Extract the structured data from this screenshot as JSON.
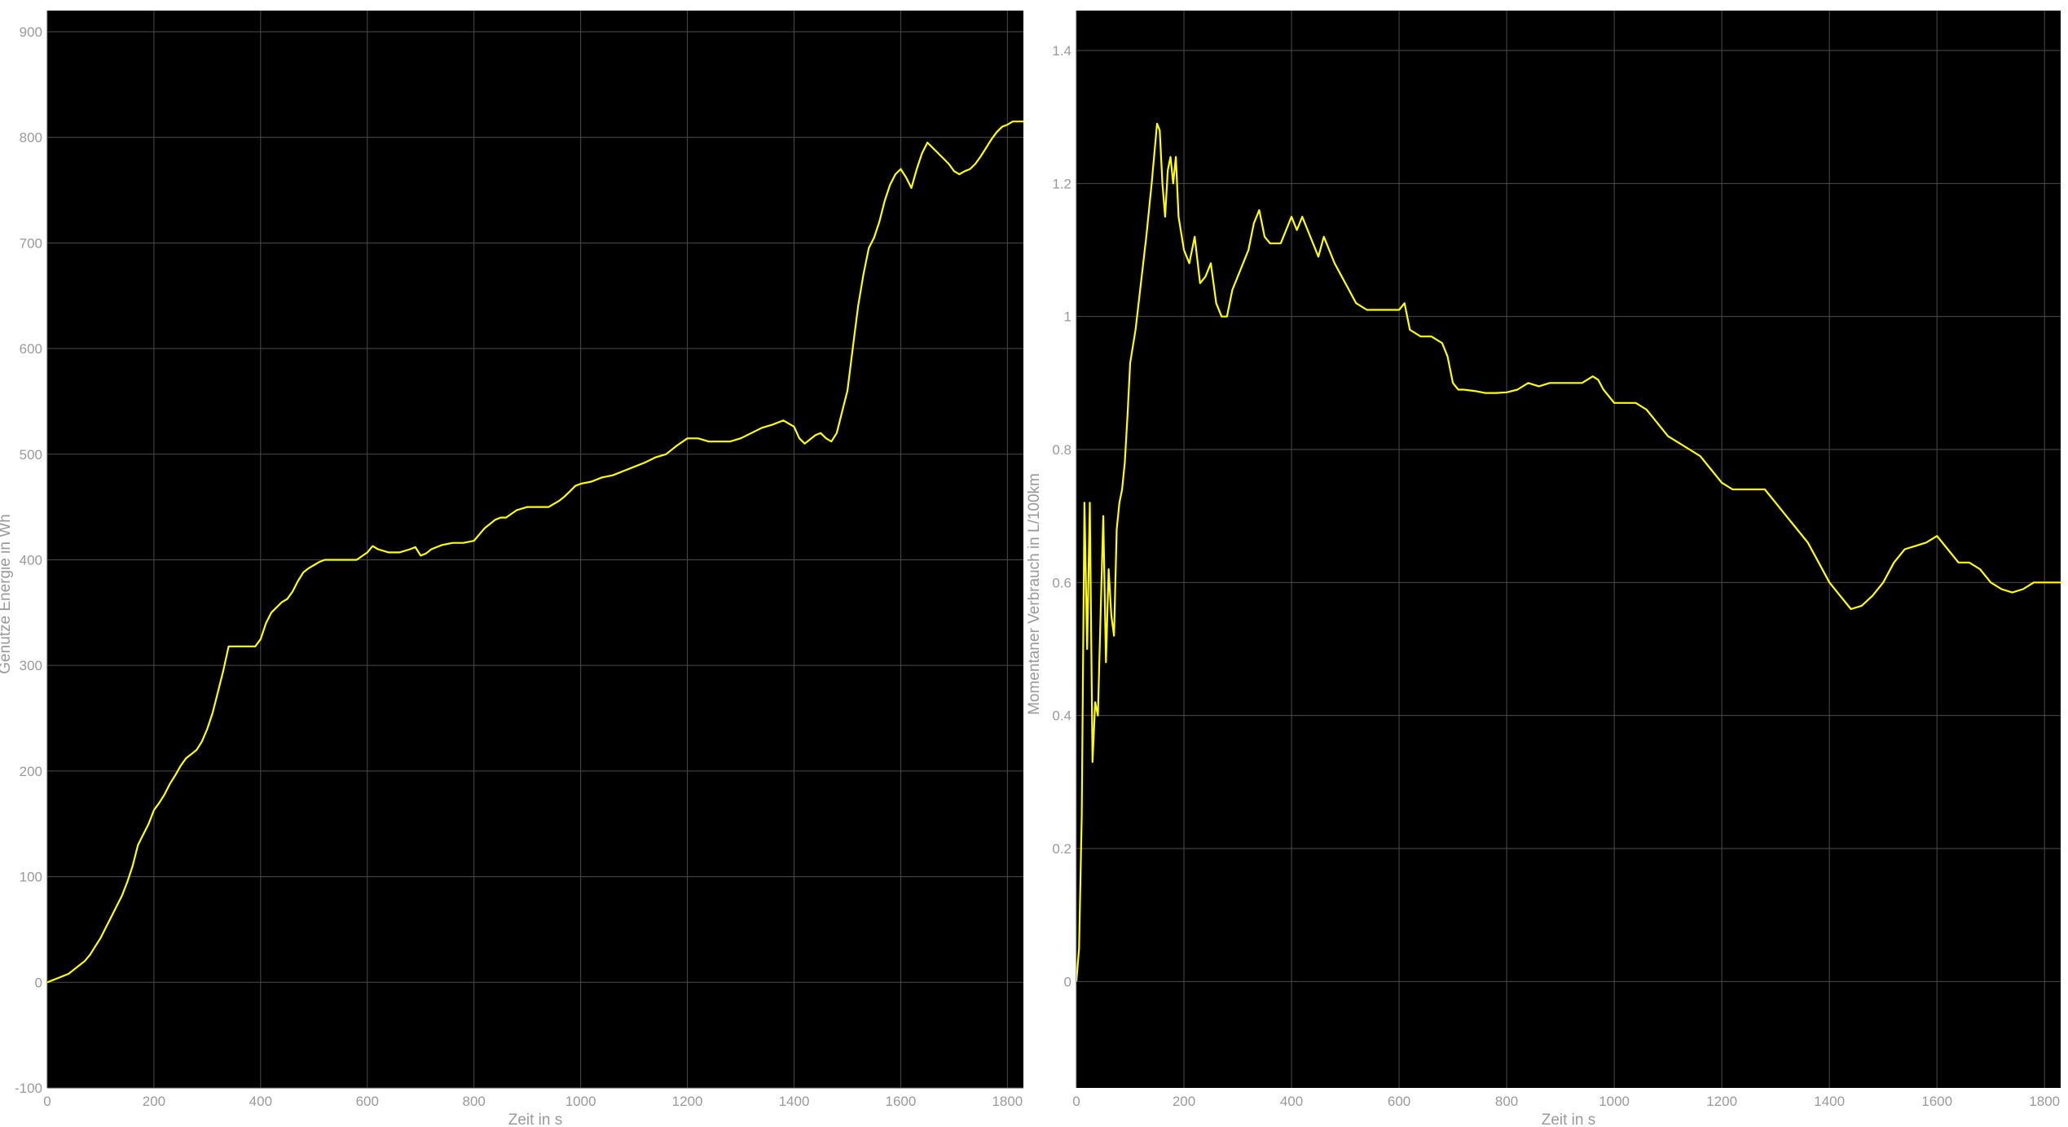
{
  "colors": {
    "background": "#ffffff",
    "plot_area": "#000000",
    "grid": "#4b4b4b",
    "text": "#9a9a9a",
    "line": "#ffff00"
  },
  "chart_data": [
    {
      "type": "line",
      "title": "",
      "xlabel": "Zeit in s",
      "ylabel": "Genutze Energie in Wh",
      "xlim": [
        0,
        1830
      ],
      "ylim": [
        -100,
        920
      ],
      "xticks": [
        0,
        200,
        400,
        600,
        800,
        1000,
        1200,
        1400,
        1600,
        1800
      ],
      "yticks": [
        -100,
        0,
        100,
        200,
        300,
        400,
        500,
        600,
        700,
        800,
        900
      ],
      "grid": true,
      "series": [
        {
          "color": "#ffff00",
          "x": [
            0,
            10,
            20,
            30,
            40,
            50,
            60,
            70,
            80,
            90,
            100,
            110,
            120,
            130,
            140,
            150,
            160,
            170,
            180,
            190,
            200,
            210,
            220,
            230,
            240,
            250,
            260,
            270,
            280,
            290,
            300,
            310,
            320,
            330,
            340,
            350,
            360,
            370,
            380,
            390,
            400,
            410,
            420,
            430,
            440,
            450,
            460,
            470,
            480,
            490,
            500,
            510,
            520,
            530,
            540,
            560,
            580,
            600,
            610,
            620,
            640,
            660,
            680,
            690,
            700,
            710,
            720,
            730,
            740,
            760,
            780,
            800,
            820,
            840,
            850,
            860,
            880,
            900,
            920,
            940,
            960,
            970,
            980,
            990,
            1000,
            1020,
            1040,
            1060,
            1080,
            1100,
            1120,
            1140,
            1160,
            1180,
            1200,
            1220,
            1240,
            1260,
            1280,
            1300,
            1320,
            1340,
            1360,
            1380,
            1400,
            1410,
            1420,
            1430,
            1440,
            1450,
            1460,
            1470,
            1480,
            1490,
            1500,
            1510,
            1520,
            1530,
            1540,
            1550,
            1560,
            1570,
            1580,
            1590,
            1600,
            1610,
            1620,
            1630,
            1640,
            1650,
            1660,
            1670,
            1680,
            1690,
            1700,
            1710,
            1720,
            1730,
            1740,
            1750,
            1760,
            1770,
            1780,
            1790,
            1800,
            1810,
            1820,
            1830
          ],
          "y": [
            0,
            2,
            4,
            6,
            8,
            12,
            16,
            20,
            26,
            34,
            42,
            52,
            62,
            72,
            82,
            95,
            110,
            130,
            140,
            150,
            163,
            170,
            178,
            188,
            196,
            205,
            212,
            216,
            220,
            228,
            240,
            255,
            275,
            295,
            318,
            318,
            318,
            318,
            318,
            318,
            325,
            340,
            350,
            355,
            360,
            363,
            370,
            380,
            388,
            392,
            395,
            398,
            400,
            400,
            400,
            400,
            400,
            407,
            413,
            410,
            407,
            407,
            410,
            412,
            404,
            406,
            410,
            412,
            414,
            416,
            416,
            418,
            430,
            438,
            440,
            440,
            447,
            450,
            450,
            450,
            456,
            460,
            465,
            470,
            472,
            474,
            478,
            480,
            484,
            488,
            492,
            497,
            500,
            508,
            515,
            515,
            512,
            512,
            512,
            515,
            520,
            525,
            528,
            532,
            526,
            515,
            510,
            514,
            518,
            520,
            515,
            512,
            520,
            540,
            560,
            600,
            640,
            670,
            695,
            705,
            720,
            740,
            755,
            765,
            770,
            762,
            752,
            770,
            785,
            795,
            790,
            785,
            780,
            775,
            768,
            765,
            768,
            770,
            775,
            782,
            790,
            798,
            805,
            810,
            812,
            815,
            815,
            815
          ]
        }
      ]
    },
    {
      "type": "line",
      "title": "",
      "xlabel": "Zeit in s",
      "ylabel": "Momentaner Verbrauch in L/100km",
      "xlim": [
        0,
        1830
      ],
      "ylim": [
        -0.16,
        1.46
      ],
      "xticks": [
        0,
        200,
        400,
        600,
        800,
        1000,
        1200,
        1400,
        1600,
        1800
      ],
      "yticks": [
        0,
        0.2,
        0.4,
        0.6,
        0.8,
        1,
        1.2,
        1.4
      ],
      "ytick_labels": [
        "0",
        "0.2",
        "0.4",
        "0.6",
        "0.8",
        "1",
        "1.2",
        "1.4"
      ],
      "grid": true,
      "series": [
        {
          "color": "#ffff00",
          "x": [
            0,
            5,
            10,
            15,
            20,
            25,
            30,
            35,
            40,
            45,
            50,
            55,
            60,
            65,
            70,
            75,
            80,
            85,
            90,
            95,
            100,
            110,
            120,
            130,
            140,
            150,
            155,
            160,
            165,
            170,
            175,
            180,
            185,
            190,
            200,
            210,
            220,
            230,
            240,
            250,
            260,
            270,
            280,
            290,
            300,
            310,
            320,
            330,
            340,
            350,
            360,
            380,
            400,
            410,
            420,
            430,
            440,
            450,
            460,
            470,
            480,
            500,
            520,
            540,
            560,
            580,
            600,
            610,
            620,
            640,
            660,
            680,
            690,
            700,
            710,
            720,
            740,
            760,
            780,
            800,
            820,
            840,
            860,
            880,
            900,
            920,
            940,
            960,
            970,
            980,
            1000,
            1020,
            1040,
            1060,
            1080,
            1100,
            1120,
            1140,
            1160,
            1180,
            1200,
            1220,
            1240,
            1260,
            1280,
            1300,
            1320,
            1340,
            1360,
            1380,
            1400,
            1420,
            1440,
            1460,
            1480,
            1500,
            1520,
            1540,
            1560,
            1580,
            1600,
            1620,
            1640,
            1660,
            1680,
            1700,
            1720,
            1740,
            1760,
            1780,
            1800,
            1820,
            1830
          ],
          "y": [
            0,
            0.05,
            0.25,
            0.72,
            0.5,
            0.72,
            0.33,
            0.42,
            0.4,
            0.55,
            0.7,
            0.48,
            0.62,
            0.55,
            0.52,
            0.68,
            0.72,
            0.74,
            0.78,
            0.85,
            0.93,
            0.98,
            1.05,
            1.12,
            1.2,
            1.29,
            1.28,
            1.2,
            1.15,
            1.22,
            1.24,
            1.2,
            1.24,
            1.15,
            1.1,
            1.08,
            1.12,
            1.05,
            1.06,
            1.08,
            1.02,
            1.0,
            1.0,
            1.04,
            1.06,
            1.08,
            1.1,
            1.14,
            1.16,
            1.12,
            1.11,
            1.11,
            1.15,
            1.13,
            1.15,
            1.13,
            1.11,
            1.09,
            1.12,
            1.1,
            1.08,
            1.05,
            1.02,
            1.01,
            1.01,
            1.01,
            1.01,
            1.02,
            0.98,
            0.97,
            0.97,
            0.96,
            0.94,
            0.9,
            0.89,
            0.89,
            0.888,
            0.885,
            0.885,
            0.886,
            0.89,
            0.9,
            0.895,
            0.9,
            0.9,
            0.9,
            0.9,
            0.91,
            0.905,
            0.89,
            0.87,
            0.87,
            0.87,
            0.86,
            0.84,
            0.82,
            0.81,
            0.8,
            0.79,
            0.77,
            0.75,
            0.74,
            0.74,
            0.74,
            0.74,
            0.72,
            0.7,
            0.68,
            0.66,
            0.63,
            0.6,
            0.58,
            0.56,
            0.565,
            0.58,
            0.6,
            0.63,
            0.65,
            0.655,
            0.66,
            0.67,
            0.65,
            0.63,
            0.63,
            0.62,
            0.6,
            0.59,
            0.585,
            0.59,
            0.6,
            0.6,
            0.6,
            0.6
          ]
        }
      ]
    }
  ]
}
